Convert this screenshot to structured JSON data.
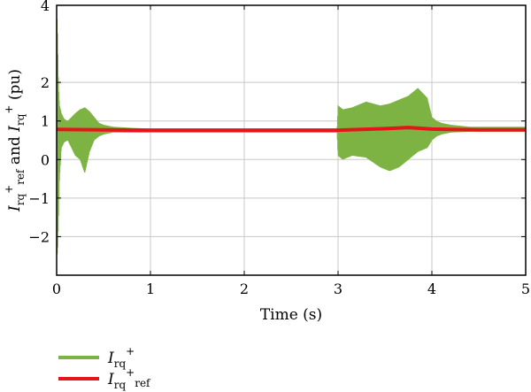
{
  "chart_data": {
    "type": "line",
    "xlabel": "Time (s)",
    "ylabel": {
      "I1": "I",
      "sup1": "+",
      "sub1": "rq",
      "sub1b": "ref",
      "and": " and ",
      "I2": "I",
      "sub2": "rq",
      "sup2": "+",
      "unit": " (pu)"
    },
    "xlim": [
      0,
      5
    ],
    "ylim": [
      -3,
      4
    ],
    "xticks": [
      0,
      1,
      2,
      3,
      4,
      5
    ],
    "yticks": [
      -2,
      -1,
      0,
      1,
      2,
      4
    ],
    "xgrid": [
      1,
      2,
      3,
      4
    ],
    "ygrid": [
      -2,
      -1,
      0,
      1,
      2
    ],
    "grid": true,
    "legend_position": "bottom-left outside",
    "series": [
      {
        "name": "I_rq^+",
        "color": "#7cb342",
        "kind": "oscillation",
        "envelope_x": [
          0.0,
          0.01,
          0.02,
          0.03,
          0.05,
          0.08,
          0.12,
          0.16,
          0.2,
          0.25,
          0.3,
          0.35,
          0.4,
          0.45,
          0.5,
          0.6,
          0.8,
          1.0,
          2.0,
          2.99,
          3.0,
          3.05,
          3.15,
          3.3,
          3.45,
          3.55,
          3.65,
          3.75,
          3.85,
          3.95,
          4.0,
          4.05,
          4.1,
          4.2,
          4.4,
          5.0
        ],
        "envelope_upper": [
          4.0,
          3.2,
          1.9,
          1.4,
          1.2,
          1.05,
          1.0,
          1.1,
          1.2,
          1.3,
          1.35,
          1.25,
          1.1,
          0.95,
          0.9,
          0.85,
          0.82,
          0.8,
          0.8,
          0.8,
          1.4,
          1.3,
          1.35,
          1.5,
          1.4,
          1.45,
          1.55,
          1.65,
          1.85,
          1.6,
          1.1,
          1.0,
          0.95,
          0.9,
          0.85,
          0.85
        ],
        "envelope_lower": [
          -2.5,
          -2.4,
          -1.5,
          -0.5,
          0.3,
          0.45,
          0.5,
          0.3,
          0.1,
          0.0,
          -0.35,
          0.2,
          0.5,
          0.6,
          0.65,
          0.7,
          0.7,
          0.7,
          0.7,
          0.7,
          0.1,
          0.0,
          0.1,
          0.05,
          -0.2,
          -0.3,
          -0.2,
          0.0,
          0.2,
          0.3,
          0.5,
          0.6,
          0.65,
          0.7,
          0.72,
          0.72
        ]
      },
      {
        "name": "I_rq^+ ref",
        "color": "#e8141b",
        "x": [
          0,
          1,
          2,
          3,
          3.5,
          3.75,
          4.0,
          4.5,
          5
        ],
        "y": [
          0.78,
          0.76,
          0.76,
          0.76,
          0.8,
          0.83,
          0.79,
          0.77,
          0.77
        ]
      }
    ],
    "legend": [
      {
        "base": "I",
        "sub": "rq",
        "sup": "+",
        "sub2": ""
      },
      {
        "base": "I",
        "sub": "rq",
        "sup": "+",
        "sub2": "ref"
      }
    ]
  }
}
